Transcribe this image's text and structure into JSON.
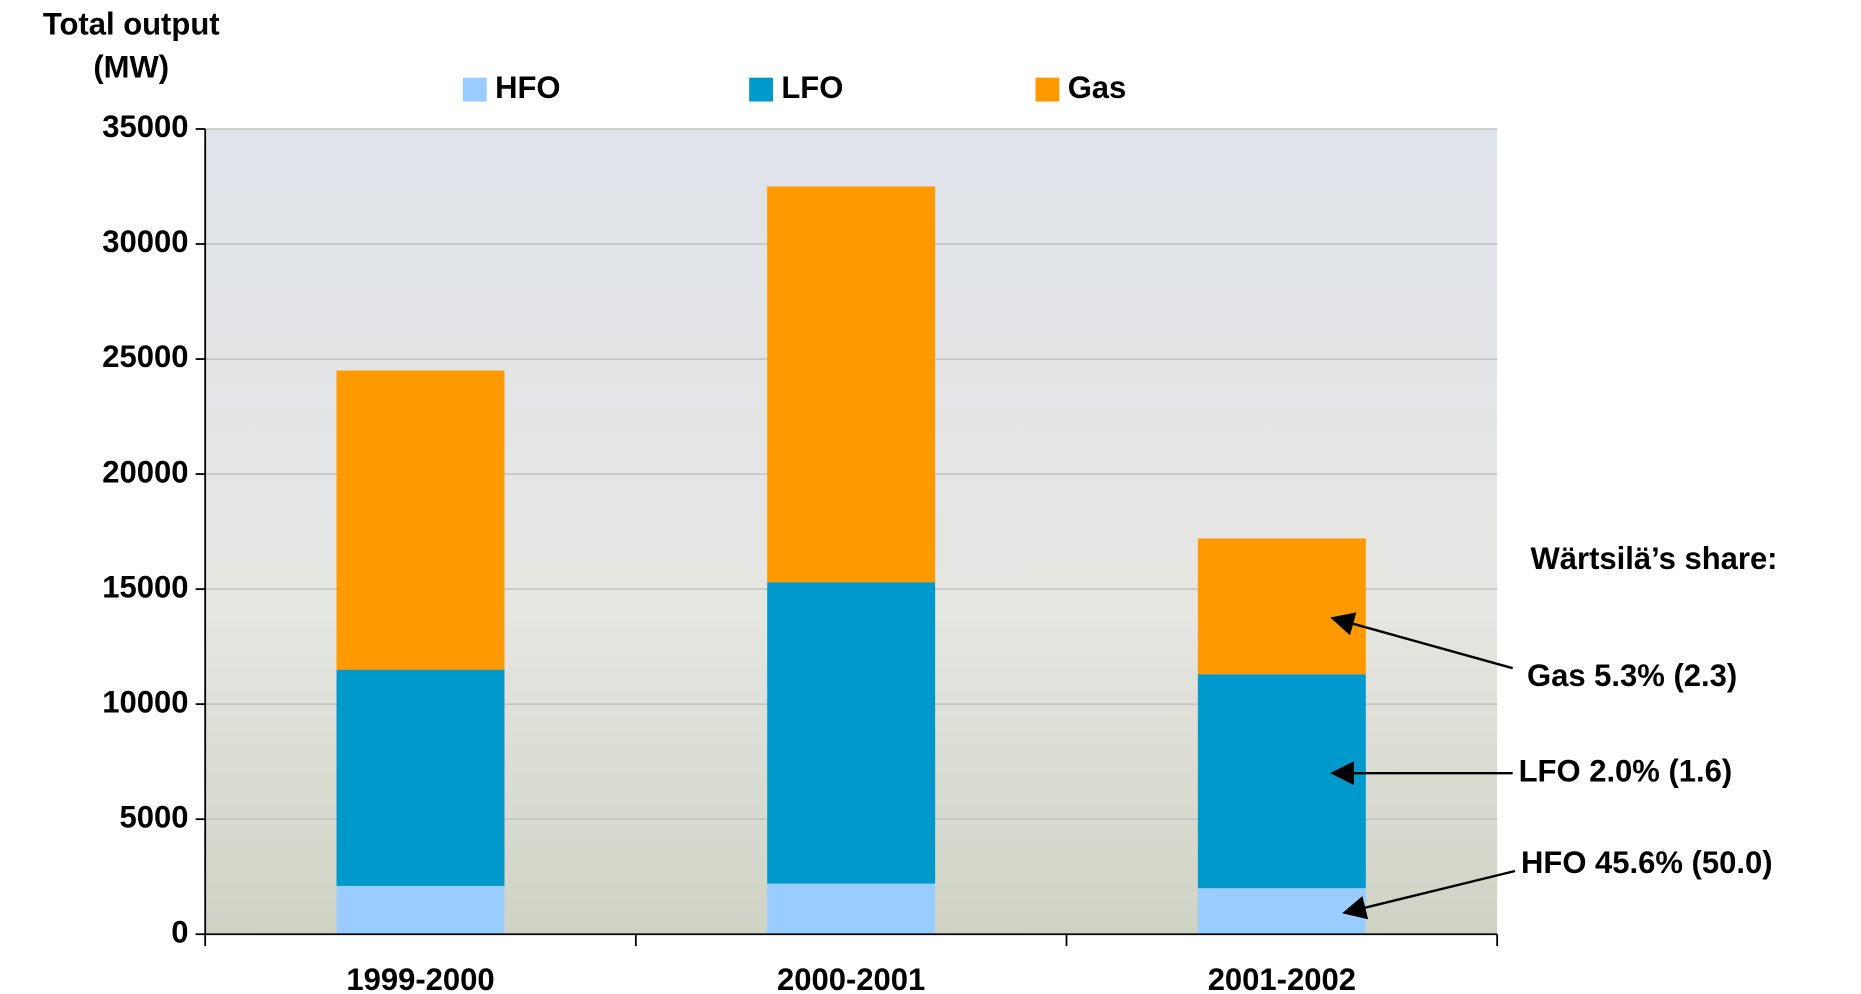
{
  "chart_data": {
    "type": "stacked-bar",
    "ylabel": [
      "Total output",
      "(MW)"
    ],
    "categories": [
      "1999-2000",
      "2000-2001",
      "2001-2002"
    ],
    "series": [
      {
        "name": "HFO",
        "color": "#99ccff",
        "values": [
          2100,
          2200,
          2000
        ]
      },
      {
        "name": "LFO",
        "color": "#0099cc",
        "values": [
          9400,
          13100,
          9300
        ]
      },
      {
        "name": "Gas",
        "color": "#ff9900",
        "values": [
          13000,
          17200,
          5900
        ]
      }
    ],
    "ylim": [
      0,
      35000
    ],
    "yticks": [
      0,
      5000,
      10000,
      15000,
      20000,
      25000,
      30000,
      35000
    ],
    "grid": true,
    "annotations": [
      "Wärtsilä’s share:",
      "Gas 5.3% (2.3)",
      "LFO 2.0% (1.6)",
      "HFO 45.6% (50.0)"
    ]
  }
}
